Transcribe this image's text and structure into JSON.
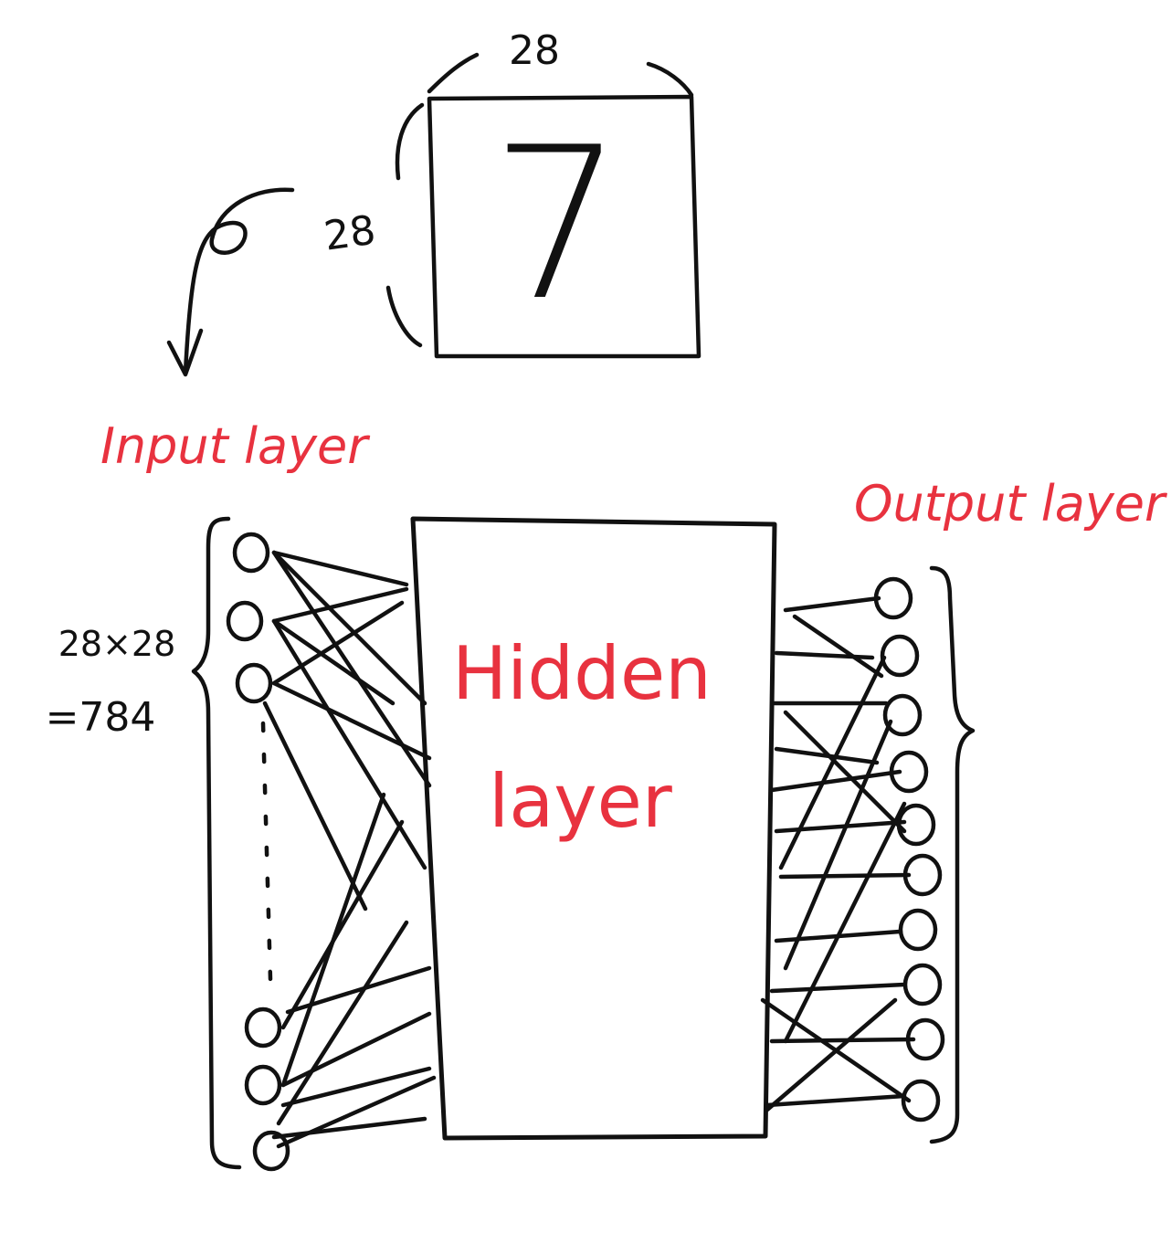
{
  "image": {
    "digit": "7",
    "width_label": "28",
    "height_label": "28"
  },
  "layers": {
    "input": {
      "label": "Input layer",
      "size_line1": "28×28",
      "size_line2": "=784"
    },
    "hidden": {
      "label_line1": "Hidden",
      "label_line2": "layer"
    },
    "output": {
      "label": "Output layer"
    }
  },
  "colors": {
    "ink": "#111111",
    "label": "#e8323f"
  }
}
